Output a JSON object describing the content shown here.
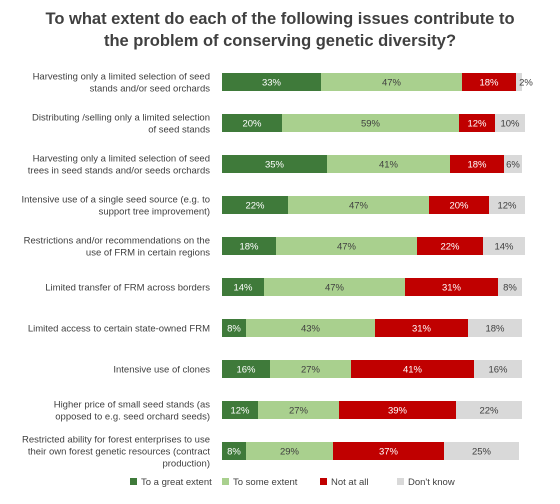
{
  "chart_data": {
    "type": "bar",
    "orientation": "horizontal-stacked-100",
    "title_lines": [
      "To what extent do each of the following issues contribute to",
      "the problem of conserving genetic diversity?"
    ],
    "categories": [
      [
        "Harvesting only a limited selection of seed",
        "stands and/or seed orchards"
      ],
      [
        "Distributing /selling only a limited selection",
        "of seed stands"
      ],
      [
        "Harvesting only a limited selection of seed",
        "trees in seed stands and/or seeds orchards"
      ],
      [
        "Intensive use of a single seed source (e.g. to",
        "support tree improvement)"
      ],
      [
        "Restrictions and/or recommendations on the",
        "use of FRM in certain regions"
      ],
      [
        "Limited transfer of FRM across borders"
      ],
      [
        "Limited  access to certain state-owned FRM"
      ],
      [
        "Intensive use of clones"
      ],
      [
        "Higher price of small seed stands (as",
        "opposed to e.g. seed orchard seeds)"
      ],
      [
        "Restricted ability for forest enterprises to use",
        "their own forest genetic resources (contract",
        "production)"
      ]
    ],
    "series": [
      {
        "name": "To a great extent",
        "color": "#3f7a3a",
        "text_color": "#ffffff",
        "values": [
          33,
          20,
          35,
          22,
          18,
          14,
          8,
          16,
          12,
          8
        ],
        "labels": [
          "33%",
          "20%",
          "35%",
          "22%",
          "18%",
          "14%",
          "8%",
          "16%",
          "12%",
          "8%"
        ]
      },
      {
        "name": "To some extent",
        "color": "#a9d08e",
        "text_color": "#404040",
        "values": [
          47,
          59,
          41,
          47,
          47,
          47,
          43,
          27,
          27,
          29
        ],
        "labels": [
          "47%",
          "59%",
          "41%",
          "47%",
          "47%",
          "47%",
          "43%",
          "27%",
          "27%",
          "29%"
        ]
      },
      {
        "name": "Not at all",
        "color": "#c00000",
        "text_color": "#ffffff",
        "values": [
          18,
          12,
          18,
          20,
          22,
          31,
          31,
          41,
          39,
          37
        ],
        "labels": [
          "18%",
          "12%",
          "18%",
          "20%",
          "22%",
          "31%",
          "31%",
          "41%",
          "39%",
          "37%"
        ]
      },
      {
        "name": "Don't know",
        "color": "#d9d9d9",
        "text_color": "#404040",
        "values": [
          2,
          10,
          6,
          12,
          14,
          8,
          18,
          16,
          22,
          25
        ],
        "labels": [
          "2%",
          "10%",
          "6%",
          "12%",
          "14%",
          "8%",
          "18%",
          "16%",
          "22%",
          "25%"
        ]
      }
    ],
    "xlim": [
      0,
      100
    ],
    "grid": false,
    "legend_position": "bottom"
  }
}
